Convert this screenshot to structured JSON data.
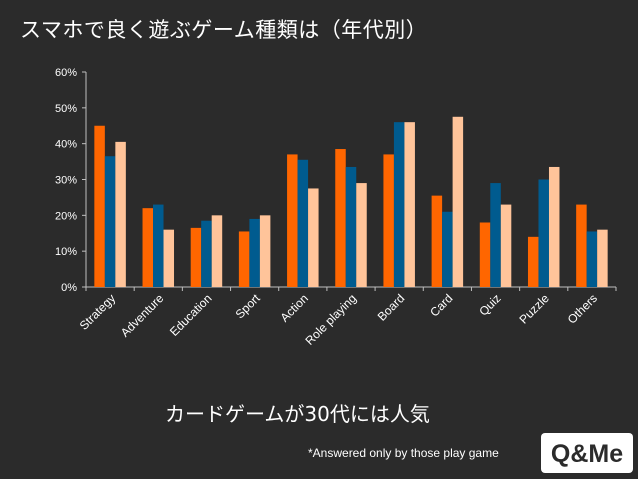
{
  "title": "スマホで良く遊ぶゲーム種類は（年代別）",
  "caption": "カードゲームが30代には人気",
  "note": "*Answered only by those play game",
  "logo": {
    "text": "Q&Me"
  },
  "colors": {
    "background": "#2b2b2b",
    "axis": "#bfbfbf",
    "series": [
      "#ff6600",
      "#005b8f",
      "#ffc49a"
    ]
  },
  "chart_data": {
    "type": "bar",
    "title": "スマホで良く遊ぶゲーム種類は（年代別）",
    "xlabel": "",
    "ylabel": "",
    "ylim": [
      0,
      60
    ],
    "yticks": [
      "0%",
      "10%",
      "20%",
      "30%",
      "40%",
      "50%",
      "60%"
    ],
    "grid": false,
    "legend": "none",
    "categories": [
      "Strategy",
      "Adventure",
      "Education",
      "Sport",
      "Action",
      "Role playing",
      "Board",
      "Card",
      "Quiz",
      "Puzzle",
      "Others"
    ],
    "series": [
      {
        "values": [
          45,
          22,
          16.5,
          15.5,
          37,
          38.5,
          37,
          25.5,
          18,
          14,
          23
        ]
      },
      {
        "values": [
          36.5,
          23,
          18.5,
          19,
          35.5,
          33.5,
          46,
          21,
          29,
          30,
          15.5
        ]
      },
      {
        "values": [
          40.5,
          16,
          20,
          20,
          27.5,
          29,
          46,
          47.5,
          23,
          33.5,
          16
        ]
      }
    ]
  }
}
